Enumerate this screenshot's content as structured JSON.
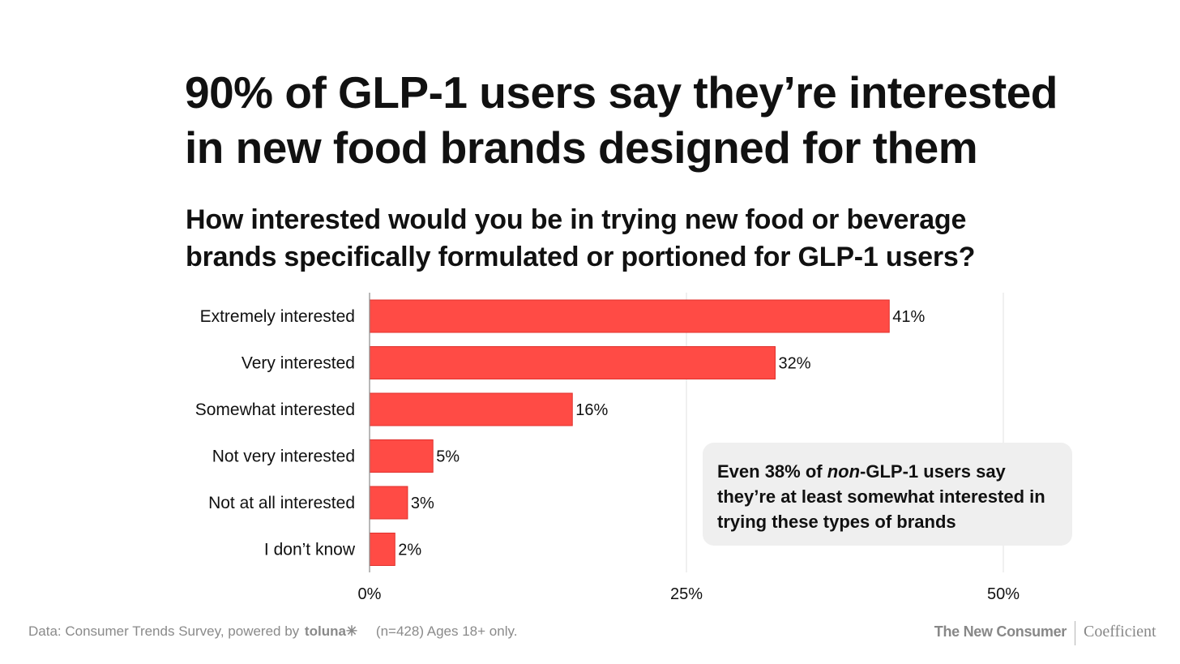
{
  "title_line1": "90% of GLP-1 users say they’re interested",
  "title_line2": "in new food brands designed for them",
  "subtitle_line1": "How interested would you be in trying new food or beverage",
  "subtitle_line2": "brands specifically formulated or portioned for GLP-1 users?",
  "callout": {
    "prefix": "Even 38% of ",
    "emphasis": "non",
    "suffix": "-GLP-1 users say they’re at least somewhat interested in trying these types of brands"
  },
  "footer": {
    "source": "Data: Consumer Trends Survey, powered by",
    "source_brand": "toluna✳",
    "sample": "(n=428) Ages 18+ only.",
    "brand_left": "The New Consumer",
    "brand_right": "Coefficient"
  },
  "colors": {
    "bar": "#ff4b45",
    "bar_stroke": "#e0302c",
    "grid": "#e2e2e2",
    "callout_bg": "#efefef"
  },
  "chart_data": {
    "type": "bar",
    "orientation": "horizontal",
    "categories": [
      "Extremely interested",
      "Very interested",
      "Somewhat interested",
      "Not very interested",
      "Not at all interested",
      "I don’t know"
    ],
    "values": [
      41,
      32,
      16,
      5,
      3,
      2
    ],
    "value_labels": [
      "41%",
      "32%",
      "16%",
      "5%",
      "3%",
      "2%"
    ],
    "xlim": [
      0,
      55
    ],
    "xticks": [
      0,
      25,
      50
    ],
    "xtick_labels": [
      "0%",
      "25%",
      "50%"
    ],
    "grid": true,
    "xlabel": "",
    "ylabel": ""
  }
}
